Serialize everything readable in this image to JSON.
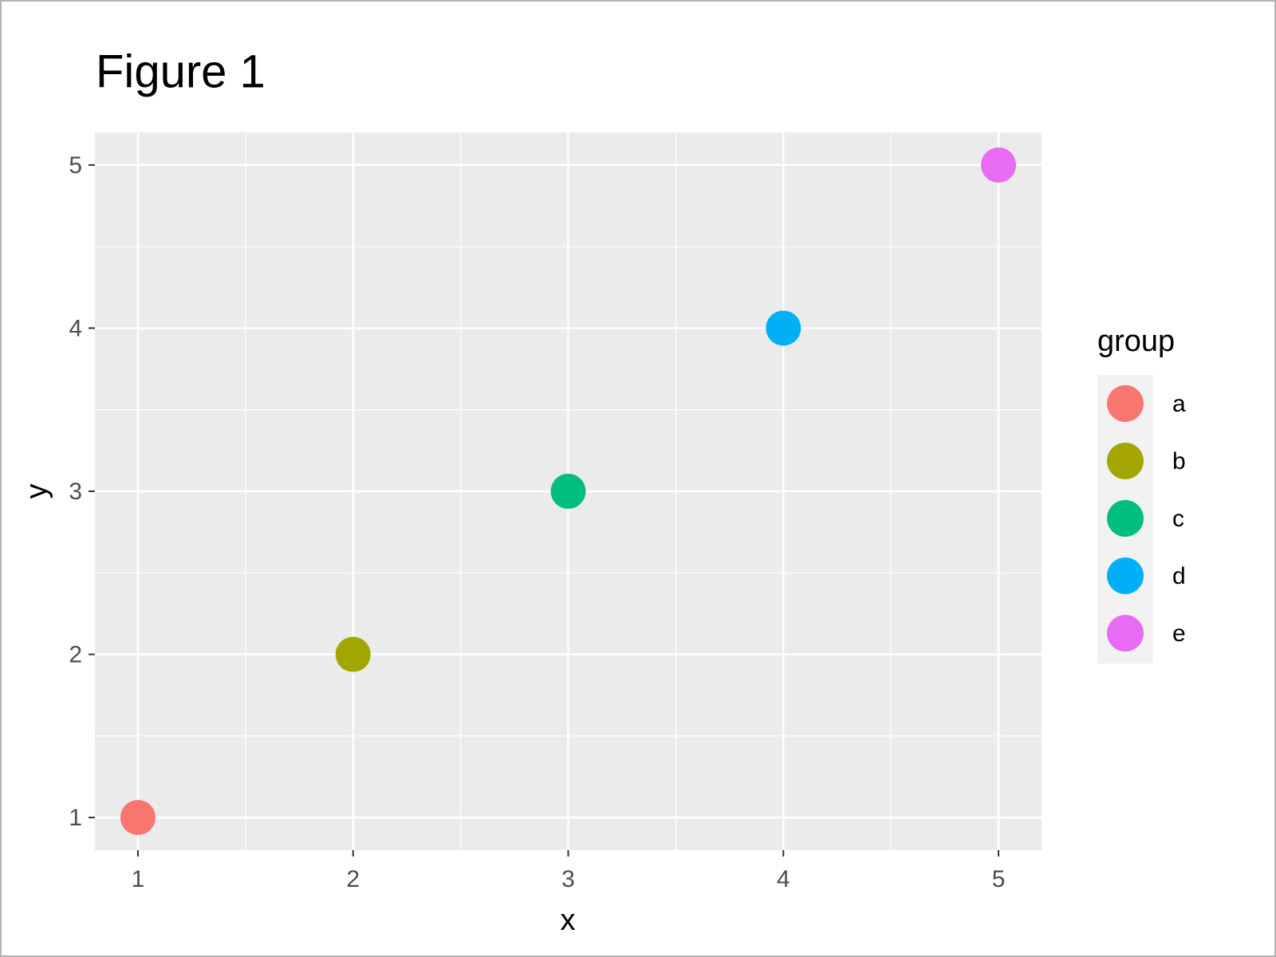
{
  "chart_data": {
    "type": "scatter",
    "title": "Figure 1",
    "x_label": "x",
    "y_label": "y",
    "legend_title": "group",
    "series": [
      {
        "name": "a",
        "color": "#F8766D",
        "x": [
          1
        ],
        "values": [
          1
        ]
      },
      {
        "name": "b",
        "color": "#A3A500",
        "x": [
          2
        ],
        "values": [
          2
        ]
      },
      {
        "name": "c",
        "color": "#00BF7D",
        "x": [
          3
        ],
        "values": [
          3
        ]
      },
      {
        "name": "d",
        "color": "#00B0F6",
        "x": [
          4
        ],
        "values": [
          4
        ]
      },
      {
        "name": "e",
        "color": "#E76BF3",
        "x": [
          5
        ],
        "values": [
          5
        ]
      }
    ],
    "xlim": [
      0.8,
      5.2
    ],
    "ylim": [
      0.8,
      5.2
    ],
    "xticks": [
      1,
      2,
      3,
      4,
      5
    ],
    "yticks": [
      1,
      2,
      3,
      4,
      5
    ],
    "x_minor_ticks": [
      1.5,
      2.5,
      3.5,
      4.5
    ],
    "y_minor_ticks": [
      1.5,
      2.5,
      3.5,
      4.5
    ],
    "grid": true,
    "legend": "right"
  }
}
